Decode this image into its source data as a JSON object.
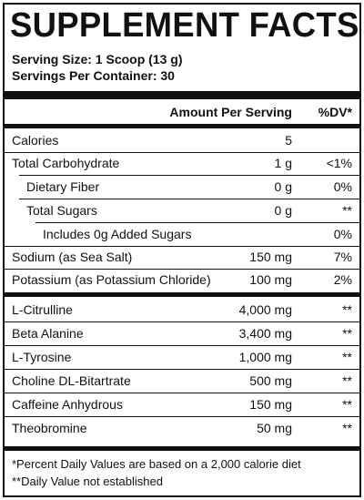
{
  "title": "SUPPLEMENT FACTS",
  "serving_size": "Serving Size: 1 Scoop (13 g)",
  "servings_per_container": "Servings Per Container: 30",
  "headers": {
    "amount": "Amount Per Serving",
    "dv": "%DV*"
  },
  "nutrients": [
    {
      "name": "Calories",
      "amount": "5",
      "dv": ""
    },
    {
      "name": "Total Carbohydrate",
      "amount": "1 g",
      "dv": "<1%"
    },
    {
      "name": "Dietary Fiber",
      "amount": "0 g",
      "dv": "0%"
    },
    {
      "name": "Total Sugars",
      "amount": "0 g",
      "dv": "**"
    },
    {
      "name": "Includes 0g Added Sugars",
      "amount": "",
      "dv": "0%"
    },
    {
      "name": "Sodium (as Sea Salt)",
      "amount": "150 mg",
      "dv": "7%"
    },
    {
      "name": "Potassium (as Potassium Chloride)",
      "amount": "100 mg",
      "dv": "2%"
    }
  ],
  "ingredients": [
    {
      "name": "L-Citrulline",
      "amount": "4,000 mg",
      "dv": "**"
    },
    {
      "name": "Beta Alanine",
      "amount": "3,400 mg",
      "dv": "**"
    },
    {
      "name": "L-Tyrosine",
      "amount": "1,000 mg",
      "dv": "**"
    },
    {
      "name": "Choline DL-Bitartrate",
      "amount": "500 mg",
      "dv": "**"
    },
    {
      "name": "Caffeine Anhydrous",
      "amount": "150 mg",
      "dv": "**"
    },
    {
      "name": "Theobromine",
      "amount": "50 mg",
      "dv": "**"
    }
  ],
  "footnotes": [
    "*Percent Daily Values are based on a 2,000 calorie diet",
    "**Daily Value not established"
  ]
}
